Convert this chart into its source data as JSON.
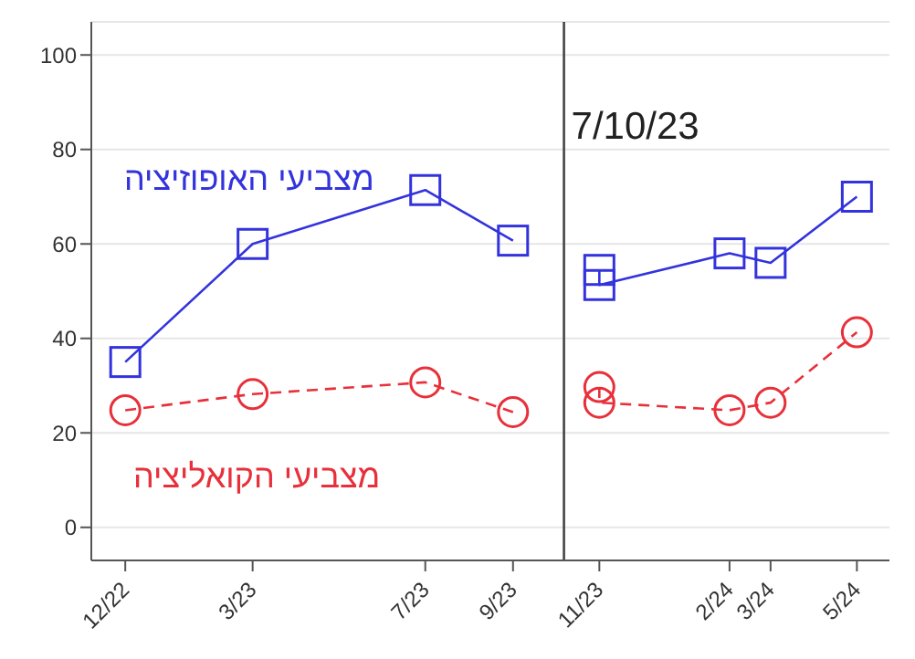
{
  "chart_data": {
    "type": "line",
    "x": [
      "2022-12",
      "2023-03",
      "2023-07",
      "2023-09",
      "2023-10",
      "2023-11",
      "2023-11",
      "2024-02",
      "2024-03",
      "2024-05"
    ],
    "series": [
      {
        "name": "מצביעי האופוזיציה",
        "color": "#3333dd",
        "marker": "square",
        "line_style": "solid",
        "values": [
          35,
          60,
          71.4,
          60.7,
          null,
          54.5,
          51.3,
          58,
          56,
          70
        ]
      },
      {
        "name": "מצביעי הקואליציה",
        "color": "#e8303a",
        "marker": "circle",
        "line_style": "dashed",
        "values": [
          24.8,
          28.2,
          30.7,
          24.4,
          null,
          29.7,
          26.4,
          24.8,
          26.4,
          41.3
        ]
      }
    ],
    "xlim": [
      "2022-11-07",
      "2024-05-24"
    ],
    "xticks": [
      {
        "value": "2022-12",
        "label": "12/22"
      },
      {
        "value": "2023-03",
        "label": "3/23"
      },
      {
        "value": "2023-07",
        "label": "7/23"
      },
      {
        "value": "2023-09",
        "label": "9/23"
      },
      {
        "value": "2023-11",
        "label": "11/23"
      },
      {
        "value": "2024-02",
        "label": "2/24"
      },
      {
        "value": "2024-03",
        "label": "3/24"
      },
      {
        "value": "2024-05",
        "label": "5/24"
      }
    ],
    "ylim": [
      -7,
      107
    ],
    "yticks": [
      0,
      20,
      40,
      60,
      80,
      100
    ],
    "grid": "y",
    "legend": false,
    "ref_lines": [
      {
        "axis": "x",
        "value": "2023-10-07",
        "label": "7/10/23",
        "color": "#444444"
      }
    ]
  }
}
